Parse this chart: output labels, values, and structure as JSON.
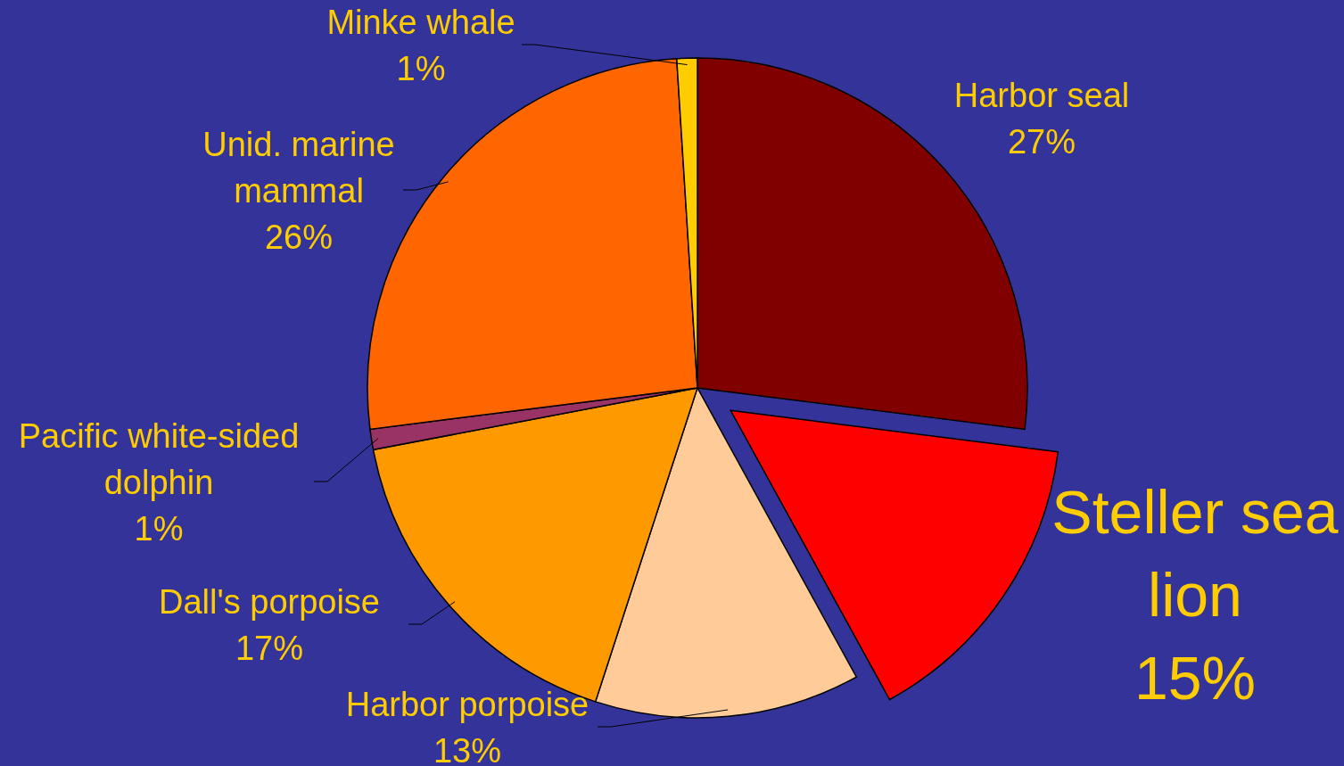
{
  "chart_data": {
    "type": "pie",
    "categories": [
      "Harbor seal",
      "Steller sea lion",
      "Harbor porpoise",
      "Dall's porpoise",
      "Pacific white-sided dolphin",
      "Unid. marine mammal",
      "Minke whale"
    ],
    "values": [
      27,
      15,
      13,
      17,
      1,
      26,
      1
    ],
    "value_labels": [
      "27%",
      "15%",
      "13%",
      "17%",
      "1%",
      "26%",
      "1%"
    ],
    "colors": [
      "#800000",
      "#ff0000",
      "#ffcc99",
      "#ff9900",
      "#993366",
      "#ff6600",
      "#ffcc00"
    ]
  }
}
